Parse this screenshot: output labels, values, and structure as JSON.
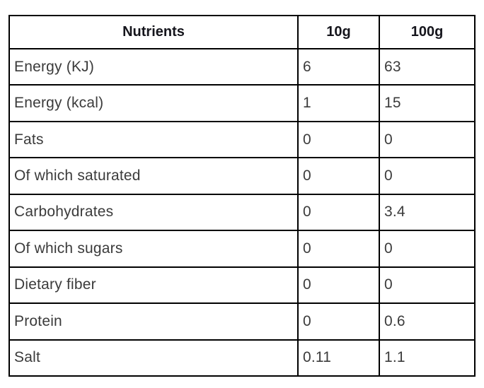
{
  "table": {
    "columns": [
      "Nutrients",
      "10g",
      "100g"
    ],
    "rows": [
      [
        "Energy (KJ)",
        "6",
        "63"
      ],
      [
        "Energy (kcal)",
        "1",
        "15"
      ],
      [
        "Fats",
        "0",
        "0"
      ],
      [
        "Of which saturated",
        "0",
        "0"
      ],
      [
        "Carbohydrates",
        "0",
        "3.4"
      ],
      [
        "Of which sugars",
        "0",
        "0"
      ],
      [
        "Dietary fiber",
        "0",
        "0"
      ],
      [
        "Protein",
        "0",
        "0.6"
      ],
      [
        "Salt",
        "0.11",
        "1.1"
      ]
    ],
    "colors": {
      "border": "#000000",
      "header_text": "#15151c",
      "body_text": "#3b3b3b",
      "background": "#ffffff"
    }
  }
}
